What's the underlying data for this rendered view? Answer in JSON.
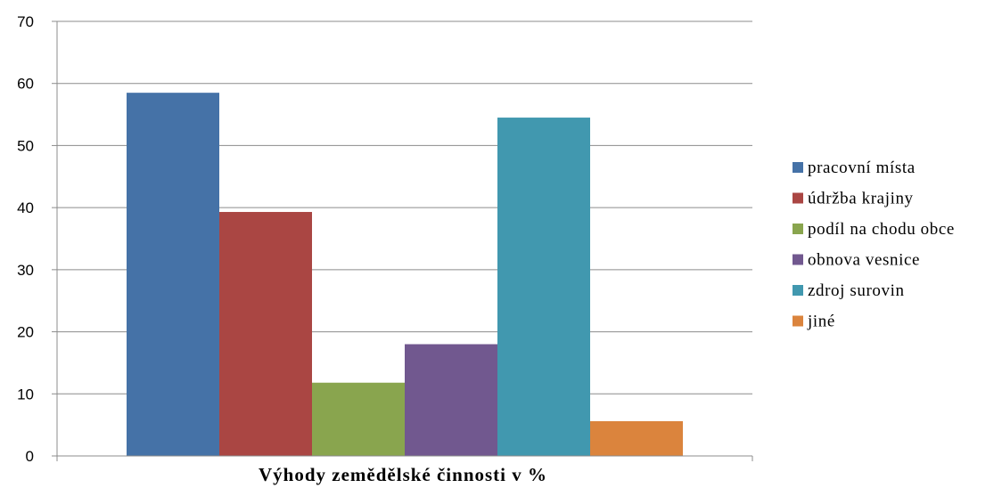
{
  "chart_data": {
    "type": "bar",
    "title": "",
    "xlabel": "Výhody zemědělské činnosti v %",
    "ylabel": "",
    "ylim": [
      0,
      70
    ],
    "yticks": [
      0,
      10,
      20,
      30,
      40,
      50,
      60,
      70
    ],
    "grid": true,
    "legend_position": "right",
    "series": [
      {
        "name": "pracovní místa",
        "value": 58.5,
        "color": "#4572A7"
      },
      {
        "name": "údržba krajiny",
        "value": 39.3,
        "color": "#AA4643"
      },
      {
        "name": "podíl na chodu obce",
        "value": 11.8,
        "color": "#89A54E"
      },
      {
        "name": "obnova vesnice",
        "value": 18.0,
        "color": "#71588F"
      },
      {
        "name": "zdroj surovin",
        "value": 54.5,
        "color": "#4198AF"
      },
      {
        "name": "jiné",
        "value": 5.6,
        "color": "#DB843D"
      }
    ]
  }
}
